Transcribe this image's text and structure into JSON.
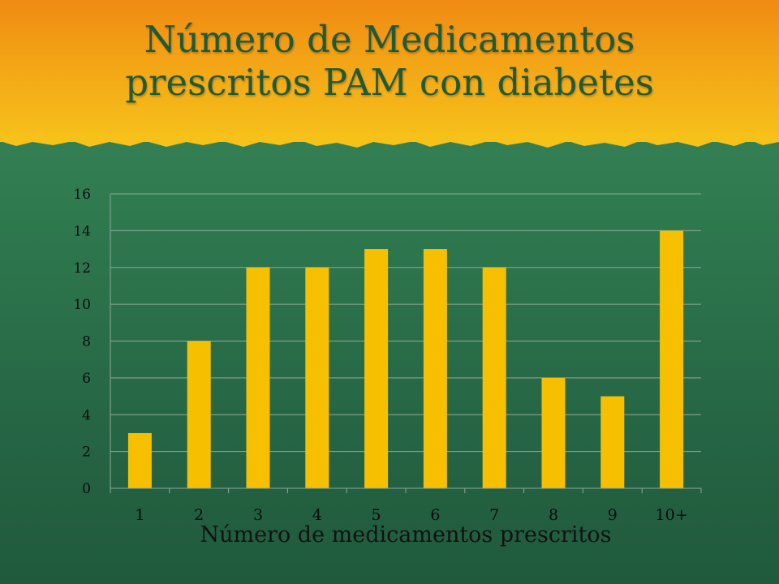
{
  "slide": {
    "title_line1": "Número de Medicamentos",
    "title_line2": "prescritos PAM con diabetes"
  },
  "colors": {
    "header_orange": "#f08a12",
    "header_yellow": "#f6c21a",
    "background_green": "#2f7a4f",
    "title_green": "#1f5a34",
    "bar": "#f6c000",
    "gridline": "#8fa898"
  },
  "chart_data": {
    "type": "bar",
    "title": "",
    "xlabel": "Número de medicamentos prescritos",
    "ylabel": "",
    "categories": [
      "1",
      "2",
      "3",
      "4",
      "5",
      "6",
      "7",
      "8",
      "9",
      "10+"
    ],
    "values": [
      3,
      8,
      12,
      12,
      13,
      13,
      12,
      6,
      5,
      14
    ],
    "ylim": [
      0,
      16
    ],
    "yticks": [
      0,
      2,
      4,
      6,
      8,
      10,
      12,
      14,
      16
    ],
    "grid": true,
    "legend": "none"
  }
}
